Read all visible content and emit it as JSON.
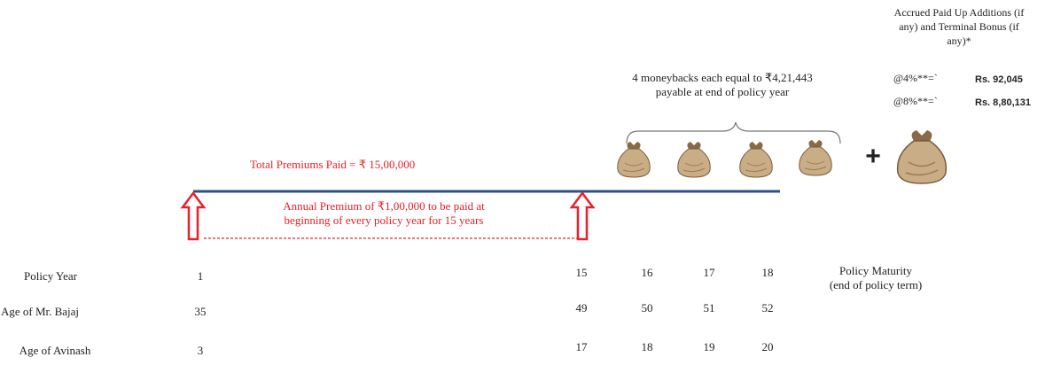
{
  "bonus": {
    "title_lines": [
      "Accrued Paid Up Additions (if",
      "any) and Terminal Bonus (if",
      "any)*"
    ],
    "rates": [
      {
        "label": "@4%**=`",
        "amount": "Rs. 92,045"
      },
      {
        "label": "@8%**=`",
        "amount": "Rs. 8,80,131"
      }
    ]
  },
  "moneyback": {
    "lines": [
      "4 moneybacks each equal to ₹4,21,443",
      "payable at end of policy year"
    ]
  },
  "plus": "+",
  "total_premium": "Total Premiums Paid = ₹ 15,00,000",
  "annual_premium": {
    "lines": [
      "Annual Premium of ₹1,00,000 to be paid at",
      "beginning of every policy year for 15 years"
    ]
  },
  "table": {
    "rows": [
      {
        "label": "Policy Year",
        "cells": [
          "1",
          "15",
          "16",
          "17",
          "18"
        ],
        "maturity": [
          "Policy Maturity",
          "(end of policy term)"
        ]
      },
      {
        "label": "Age of Mr. Bajaj",
        "cells": [
          "35",
          "49",
          "50",
          "51",
          "52"
        ]
      },
      {
        "label": "Age of Avinash",
        "cells": [
          "3",
          "17",
          "18",
          "19",
          "20"
        ]
      }
    ]
  }
}
